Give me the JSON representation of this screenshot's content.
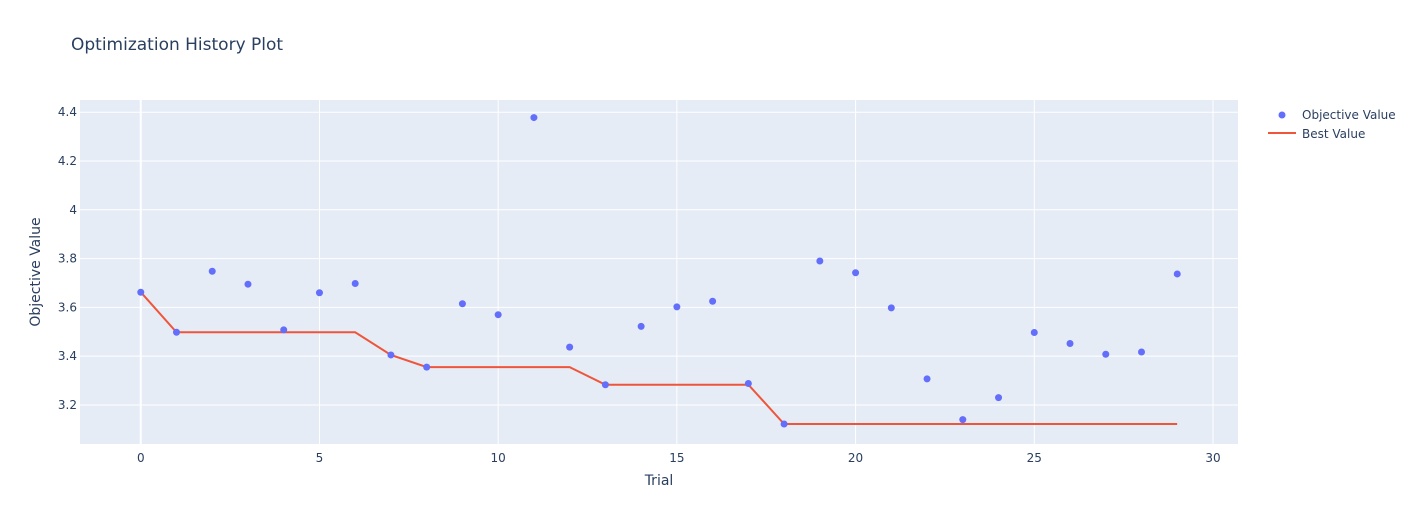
{
  "chart_data": {
    "type": "scatter",
    "title": "Optimization History Plot",
    "xlabel": "Trial",
    "ylabel": "Objective Value",
    "xlim": [
      -1.7,
      30.7
    ],
    "ylim": [
      3.04,
      4.45
    ],
    "x_ticks": [
      0,
      5,
      10,
      15,
      20,
      25,
      30
    ],
    "y_ticks": [
      3.2,
      3.4,
      3.6,
      3.8,
      4,
      4.2,
      4.4
    ],
    "x_tick_labels": [
      "0",
      "5",
      "10",
      "15",
      "20",
      "25",
      "30"
    ],
    "y_tick_labels": [
      "3.2",
      "3.4",
      "3.6",
      "3.8",
      "4",
      "4.2",
      "4.4"
    ],
    "grid": true,
    "legend_position": "top-right",
    "x": [
      0,
      1,
      2,
      3,
      4,
      5,
      6,
      7,
      8,
      9,
      10,
      11,
      12,
      13,
      14,
      15,
      16,
      17,
      18,
      19,
      20,
      21,
      22,
      23,
      24,
      25,
      26,
      27,
      28,
      29
    ],
    "series": [
      {
        "name": "Objective Value",
        "mode": "markers",
        "color": "#636efa",
        "values": [
          3.662,
          3.498,
          3.748,
          3.695,
          3.508,
          3.66,
          3.698,
          3.405,
          3.355,
          3.615,
          3.57,
          4.378,
          3.437,
          3.283,
          3.522,
          3.602,
          3.625,
          3.288,
          3.122,
          3.79,
          3.742,
          3.598,
          3.307,
          3.14,
          3.23,
          3.497,
          3.452,
          3.408,
          3.417,
          3.737
        ]
      },
      {
        "name": "Best Value",
        "mode": "line",
        "color": "#ef553b",
        "values": [
          3.662,
          3.498,
          3.498,
          3.498,
          3.498,
          3.498,
          3.498,
          3.405,
          3.355,
          3.355,
          3.355,
          3.355,
          3.355,
          3.283,
          3.283,
          3.283,
          3.283,
          3.283,
          3.122,
          3.122,
          3.122,
          3.122,
          3.122,
          3.122,
          3.122,
          3.122,
          3.122,
          3.122,
          3.122,
          3.122
        ]
      }
    ]
  }
}
